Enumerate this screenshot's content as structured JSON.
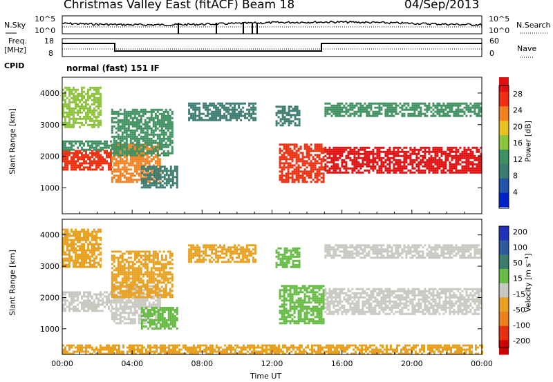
{
  "header": {
    "station": "Christmas Valley East (fitACF)",
    "beam": "Beam 18",
    "date": "04/Sep/2013"
  },
  "top_panels": {
    "nsky_label": "N.Sky",
    "nsearch_label": "N.Search",
    "noise_ticks": [
      "10^5",
      "10^0"
    ],
    "freq_label_1": "Freq.",
    "freq_label_2": "[MHz]",
    "freq_ticks": [
      "18",
      "8"
    ],
    "nave_label": "Nave",
    "nave_ticks": [
      "60",
      "0"
    ],
    "cpid_label": "CPID",
    "cpid_mode": "normal (fast) 151 IF"
  },
  "colors": {
    "power": [
      "#0022cc",
      "#2255aa",
      "#3c7c70",
      "#3f9060",
      "#8cc43c",
      "#e8c020",
      "#f08020",
      "#ee3010",
      "#e01010"
    ],
    "velocity": [
      "#2233bb",
      "#2f5a9c",
      "#3d7c6c",
      "#66bb44",
      "#c8c8c0",
      "#e8a020",
      "#e88020",
      "#e63010",
      "#cc0000"
    ],
    "ground_scatter": "#c8c8c0"
  },
  "chart_data": [
    {
      "type": "heatmap",
      "name": "power",
      "xlabel": "",
      "ylabel": "Slant Range [km]",
      "xlim": [
        0,
        24
      ],
      "ylim": [
        180,
        4500
      ],
      "yticks": [
        1000,
        2000,
        3000,
        4000
      ],
      "colorbar": {
        "label": "Power [dB]",
        "ticks": [
          4,
          8,
          12,
          16,
          20,
          24,
          28
        ],
        "range": [
          0,
          30
        ]
      },
      "regions": [
        {
          "t0": 0.0,
          "t1": 2.8,
          "r0": 1550,
          "r1": 2200,
          "value": 26
        },
        {
          "t0": 0.0,
          "t1": 2.8,
          "r0": 2200,
          "r1": 2500,
          "value": 12
        },
        {
          "t0": 0.0,
          "t1": 2.2,
          "r0": 2950,
          "r1": 4200,
          "value": 14
        },
        {
          "t0": 2.8,
          "t1": 5.6,
          "r0": 1200,
          "r1": 2400,
          "value": 22
        },
        {
          "t0": 2.8,
          "t1": 6.3,
          "r0": 2000,
          "r1": 3500,
          "value": 11
        },
        {
          "t0": 4.5,
          "t1": 6.6,
          "r0": 1000,
          "r1": 1700,
          "value": 8
        },
        {
          "t0": 7.2,
          "t1": 11.0,
          "r0": 3150,
          "r1": 3700,
          "value": 7
        },
        {
          "t0": 12.4,
          "t1": 15.0,
          "r0": 1200,
          "r1": 2400,
          "value": 24
        },
        {
          "t0": 12.2,
          "t1": 13.6,
          "r0": 2950,
          "r1": 3600,
          "value": 9
        },
        {
          "t0": 15.0,
          "t1": 24.0,
          "r0": 1500,
          "r1": 2300,
          "value": 27
        },
        {
          "t0": 15.0,
          "t1": 24.0,
          "r0": 3300,
          "r1": 3700,
          "value": 11
        }
      ]
    },
    {
      "type": "heatmap",
      "name": "velocity",
      "xlabel": "Time UT",
      "ylabel": "Slant Range [km]",
      "xlim": [
        0,
        24
      ],
      "ylim": [
        180,
        4500
      ],
      "xticks": [
        "00:00",
        "04:00",
        "08:00",
        "12:00",
        "16:00",
        "20:00",
        "00:00"
      ],
      "yticks": [
        1000,
        2000,
        3000,
        4000
      ],
      "colorbar": {
        "label": "Velocity [m s⁻¹]",
        "ticks": [
          200,
          100,
          50,
          15,
          -15,
          -50,
          -100,
          -200
        ],
        "range": [
          -250,
          250
        ]
      },
      "regions": [
        {
          "t0": 0.0,
          "t1": 2.8,
          "r0": 1550,
          "r1": 2200,
          "value": 0
        },
        {
          "t0": 0.0,
          "t1": 2.2,
          "r0": 2950,
          "r1": 4200,
          "value": -40
        },
        {
          "t0": 2.8,
          "t1": 5.6,
          "r0": 1200,
          "r1": 2400,
          "value": 0
        },
        {
          "t0": 2.8,
          "t1": 6.3,
          "r0": 2000,
          "r1": 3500,
          "value": -30
        },
        {
          "t0": 4.5,
          "t1": 6.6,
          "r0": 1000,
          "r1": 1700,
          "value": 30
        },
        {
          "t0": 7.2,
          "t1": 11.0,
          "r0": 3150,
          "r1": 3700,
          "value": -35
        },
        {
          "t0": 12.4,
          "t1": 15.0,
          "r0": 1200,
          "r1": 2400,
          "value": 35
        },
        {
          "t0": 12.2,
          "t1": 13.6,
          "r0": 2950,
          "r1": 3600,
          "value": 40
        },
        {
          "t0": 15.0,
          "t1": 24.0,
          "r0": 1500,
          "r1": 2300,
          "value": 0
        },
        {
          "t0": 15.0,
          "t1": 24.0,
          "r0": 3300,
          "r1": 3700,
          "value": 0
        },
        {
          "t0": 0.0,
          "t1": 24.0,
          "r0": 180,
          "r1": 500,
          "value": -40
        }
      ]
    }
  ]
}
